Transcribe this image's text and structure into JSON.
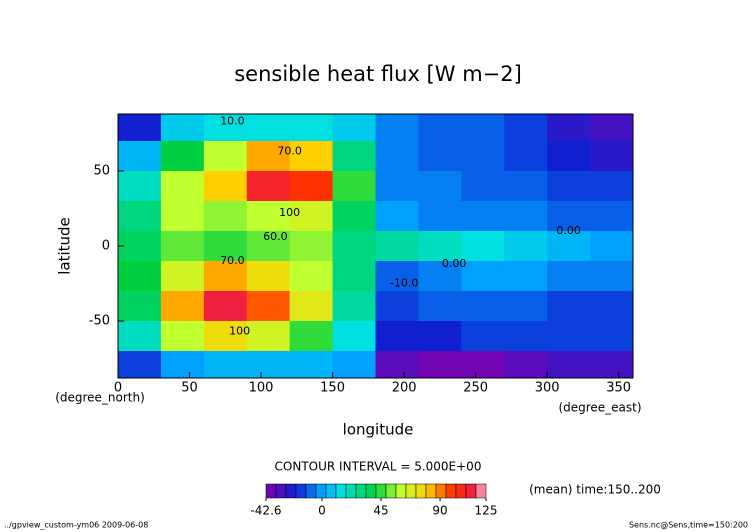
{
  "chart_data": {
    "type": "heatmap",
    "title": "sensible heat flux [W m−2]",
    "x_label": "longitude",
    "y_label": "latitude",
    "x_unit": "(degree_east)",
    "y_unit": "(degree_north)",
    "xlim": [
      0,
      360
    ],
    "ylim": [
      -88,
      88
    ],
    "xticks": [
      0,
      50,
      100,
      150,
      200,
      250,
      300,
      350
    ],
    "yticks": [
      -50,
      0,
      50
    ],
    "x": [
      15,
      45,
      75,
      105,
      135,
      165,
      195,
      225,
      255,
      285,
      315,
      345
    ],
    "y": [
      80,
      60,
      40,
      20,
      0,
      -20,
      -40,
      -60,
      -80
    ],
    "values": [
      [
        -20,
        10,
        15,
        15,
        15,
        10,
        -5,
        -10,
        -10,
        -15,
        -25,
        -30
      ],
      [
        5,
        40,
        60,
        85,
        80,
        30,
        -5,
        -10,
        -10,
        -15,
        -20,
        -25
      ],
      [
        20,
        60,
        80,
        110,
        100,
        45,
        -5,
        -5,
        -10,
        -10,
        -15,
        -15
      ],
      [
        30,
        60,
        55,
        60,
        65,
        35,
        0,
        -5,
        -5,
        -5,
        -10,
        -10
      ],
      [
        35,
        50,
        45,
        50,
        55,
        30,
        25,
        20,
        15,
        10,
        5,
        0
      ],
      [
        40,
        65,
        85,
        75,
        60,
        30,
        -10,
        -5,
        0,
        0,
        -5,
        -5
      ],
      [
        35,
        85,
        115,
        95,
        70,
        25,
        -15,
        -10,
        -10,
        -10,
        -15,
        -15
      ],
      [
        20,
        60,
        75,
        65,
        45,
        15,
        -20,
        -20,
        -15,
        -15,
        -15,
        -15
      ],
      [
        -15,
        0,
        5,
        5,
        5,
        0,
        -35,
        -40,
        -40,
        -35,
        -30,
        -30
      ]
    ],
    "contour_labels": [
      {
        "text": "10.0",
        "x": 80,
        "y": 83
      },
      {
        "text": "70.0",
        "x": 120,
        "y": 63
      },
      {
        "text": "100",
        "x": 120,
        "y": 22
      },
      {
        "text": "60.0",
        "x": 110,
        "y": 6
      },
      {
        "text": "70.0",
        "x": 80,
        "y": -10
      },
      {
        "text": "0.00",
        "x": 235,
        "y": -12
      },
      {
        "text": "-10.0",
        "x": 200,
        "y": -25
      },
      {
        "text": "100",
        "x": 85,
        "y": -57
      },
      {
        "text": "0.00",
        "x": 315,
        "y": 10
      }
    ],
    "contour_interval": "CONTOUR INTERVAL = 5.000E+00",
    "colorbar_ticks": [
      {
        "value": -42.6,
        "label": "-42.6"
      },
      0,
      45,
      90,
      125
    ],
    "colorscale": [
      {
        "value": -42.6,
        "color": "#8000b0"
      },
      {
        "value": -20,
        "color": "#1020d0"
      },
      {
        "value": 0,
        "color": "#00a0ff"
      },
      {
        "value": 15,
        "color": "#00e0e0"
      },
      {
        "value": 40,
        "color": "#00d040"
      },
      {
        "value": 60,
        "color": "#c0ff30"
      },
      {
        "value": 80,
        "color": "#ffd000"
      },
      {
        "value": 100,
        "color": "#ff3000"
      },
      {
        "value": 115,
        "color": "#f02040"
      },
      {
        "value": 125,
        "color": "#ffc0d0"
      }
    ],
    "subtitle": "(mean) time:150..200",
    "footer_left": "../gpview_custom-ym06  2009-06-08",
    "footer_right": "Sens.nc@Sens,time=150:200"
  }
}
